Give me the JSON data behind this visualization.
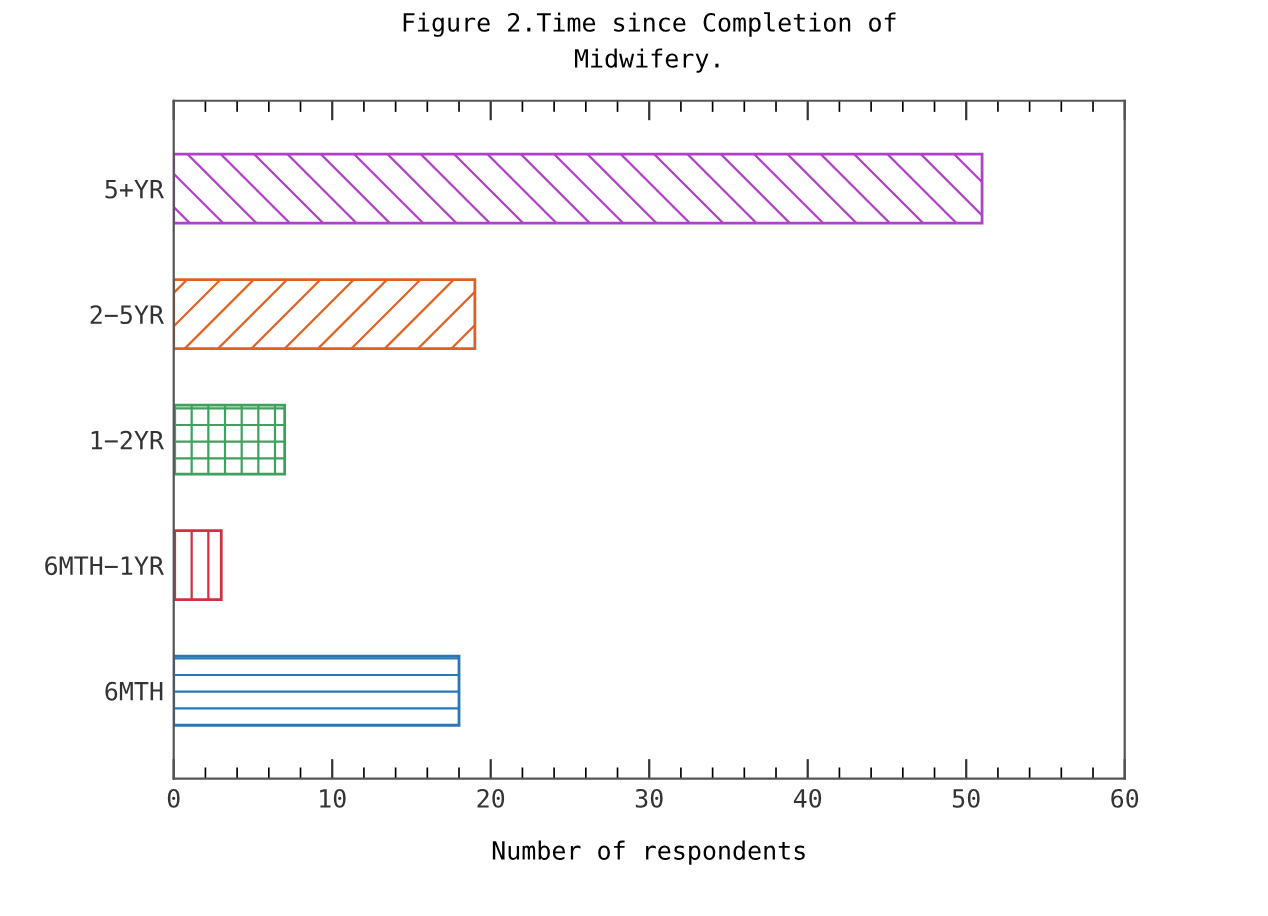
{
  "chart_data": {
    "type": "bar",
    "orientation": "horizontal",
    "title": "Figure 2.Time since Completion of\nMidwifery.",
    "xlabel": "Number of respondents",
    "categories": [
      "5+YR",
      "2−5YR",
      "1−2YR",
      "6MTH−1YR",
      "6MTH"
    ],
    "values": [
      51,
      19,
      7,
      3,
      18
    ],
    "colors": [
      "#b040c8",
      "#e06020",
      "#40a060",
      "#d03040",
      "#2878b8"
    ],
    "xlim": [
      0,
      60
    ],
    "xticks": [
      0,
      10,
      20,
      30,
      40,
      50,
      60
    ],
    "grid": false,
    "legend": false
  }
}
